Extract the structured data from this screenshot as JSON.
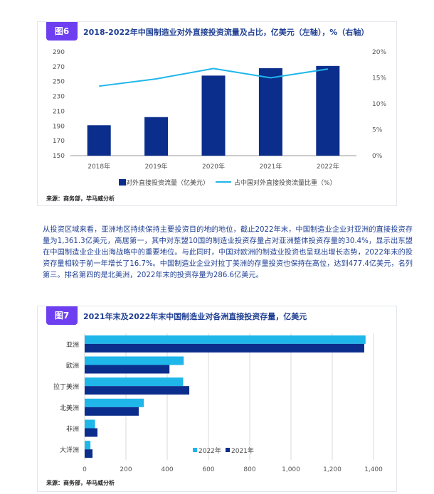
{
  "fig6": {
    "badge": "图6",
    "title": "2018-2022年中国制造业对外直接投资流量及占比，亿美元（左轴），%（右轴）",
    "source": "来源：商务部，毕马威分析"
  },
  "fig7": {
    "badge": "图7",
    "title": "2021年末及2022年末中国制造业对各洲直接投资存量，亿美元",
    "source": "来源：商务部，毕马威分析"
  },
  "paragraph": "从投资区域来看，亚洲地区持续保持主要投资目的地的地位，截止2022年末，中国制造业企业对亚洲的直接投资存量为1,361.3亿美元，高居第一，其中对东盟10国的制造业投资存量占对亚洲整体投资存量的30.4%，显示出东盟在中国制造业企业出海战略中的重要地位。与此同时，中国对欧洲的制造业投资也呈现出增长态势，2022年末的投资存量相较于前一年增长了16.7%。中国制造业企业对拉丁美洲的存量投资也保持在高位，达到477.4亿美元，名列第三。排名第四的是北美洲，2022年末的投资存量为286.6亿美元。",
  "colors": {
    "bar_dark": "#0b2d8c",
    "bar_light": "#1fb6ea",
    "line": "#1fb6ea",
    "badge": "#6d3ff0",
    "title": "#1f3f93"
  },
  "chart_data": [
    {
      "type": "bar",
      "title": "2018-2022年中国制造业对外直接投资流量及占比，亿美元（左轴），%（右轴）",
      "categories": [
        "2018年",
        "2019年",
        "2020年",
        "2021年",
        "2022年"
      ],
      "series": [
        {
          "name": "对外直接投资流量（亿美元）",
          "type": "bar",
          "axis": "left",
          "values": [
            191,
            202,
            258,
            268,
            271
          ]
        },
        {
          "name": "占中国对外直接投资流量比重（%）",
          "type": "line",
          "axis": "right",
          "values": [
            13.4,
            14.8,
            16.8,
            15.0,
            16.7
          ]
        }
      ],
      "ylim": [
        150,
        290
      ],
      "yticks": [
        "150",
        "170",
        "190",
        "210",
        "230",
        "250",
        "270",
        "290"
      ],
      "y2lim": [
        0,
        20
      ],
      "y2ticks": [
        "0%",
        "5%",
        "10%",
        "15%",
        "20%"
      ],
      "legend": "bottom"
    },
    {
      "type": "bar",
      "orientation": "horizontal",
      "title": "2021年末及2022年末中国制造业对各洲直接投资存量，亿美元",
      "categories": [
        "亚洲",
        "欧洲",
        "拉丁美洲",
        "北美洲",
        "非洲",
        "大洋洲"
      ],
      "series": [
        {
          "name": "2022年",
          "values": [
            1361.3,
            480,
            477.4,
            286.6,
            50,
            28
          ]
        },
        {
          "name": "2021年",
          "values": [
            1355,
            411,
            507,
            262,
            62,
            38
          ]
        }
      ],
      "xlim": [
        0,
        1400
      ],
      "xticks": [
        "0",
        "200",
        "400",
        "600",
        "800",
        "1,000",
        "1,200",
        "1,400"
      ],
      "legend": "bottom-right"
    }
  ]
}
